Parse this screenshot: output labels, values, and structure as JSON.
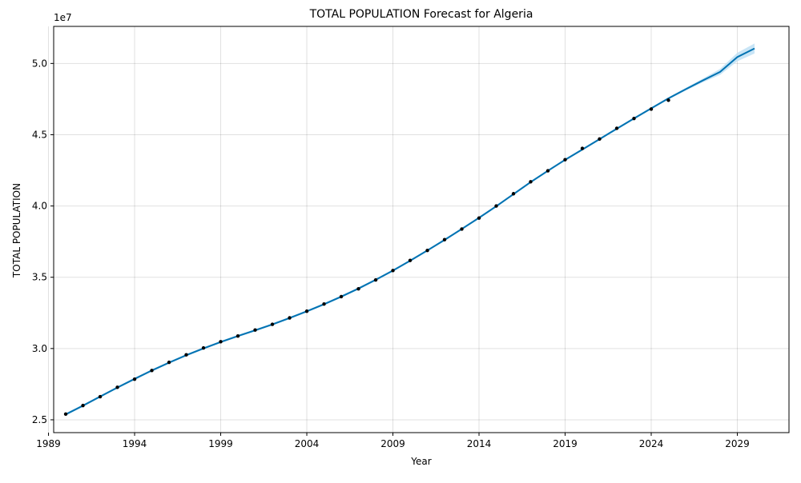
{
  "chart_data": {
    "type": "line",
    "title": "TOTAL POPULATION Forecast for Algeria",
    "xlabel": "Year",
    "ylabel": "TOTAL POPULATION",
    "y_offset_label": "1e7",
    "xlim": [
      1989.3,
      2032.0
    ],
    "ylim": [
      24100000,
      52600000
    ],
    "x_ticks": [
      1989,
      1994,
      1999,
      2004,
      2009,
      2014,
      2019,
      2024,
      2029
    ],
    "y_ticks": [
      25000000,
      30000000,
      35000000,
      40000000,
      45000000,
      50000000
    ],
    "y_tick_labels": [
      "2.5",
      "3.0",
      "3.5",
      "4.0",
      "4.5",
      "5.0"
    ],
    "grid": true,
    "colors": {
      "forecast_line": "#0072B2",
      "interval_fill": "#bfe0f5",
      "observed_points": "#000000"
    },
    "observed": {
      "x": [
        1990,
        1991,
        1992,
        1993,
        1994,
        1995,
        1996,
        1997,
        1998,
        1999,
        2000,
        2001,
        2002,
        2003,
        2004,
        2005,
        2006,
        2007,
        2008,
        2009,
        2010,
        2011,
        2012,
        2013,
        2014,
        2015,
        2016,
        2017,
        2018,
        2019,
        2020,
        2021,
        2022,
        2023,
        2024,
        2025
      ],
      "y": [
        25400000,
        26000000,
        26620000,
        27280000,
        27850000,
        28460000,
        29030000,
        29560000,
        30040000,
        30480000,
        30880000,
        31300000,
        31700000,
        32150000,
        32620000,
        33120000,
        33640000,
        34190000,
        34810000,
        35470000,
        36180000,
        36880000,
        37640000,
        38380000,
        39150000,
        40000000,
        40860000,
        41700000,
        42470000,
        43250000,
        44040000,
        44700000,
        45450000,
        46140000,
        46800000,
        47420000
      ]
    },
    "forecast": {
      "x": [
        1990,
        1991,
        1992,
        1993,
        1994,
        1995,
        1996,
        1997,
        1998,
        1999,
        2000,
        2001,
        2002,
        2003,
        2004,
        2005,
        2006,
        2007,
        2008,
        2009,
        2010,
        2011,
        2012,
        2013,
        2014,
        2015,
        2016,
        2017,
        2018,
        2019,
        2020,
        2021,
        2022,
        2023,
        2024,
        2025,
        2026,
        2027,
        2028,
        2029,
        2030
      ],
      "y": [
        25380000,
        25990000,
        26630000,
        27260000,
        27870000,
        28460000,
        29010000,
        29530000,
        30010000,
        30460000,
        30880000,
        31280000,
        31690000,
        32140000,
        32610000,
        33110000,
        33640000,
        34210000,
        34820000,
        35470000,
        36160000,
        36880000,
        37620000,
        38390000,
        39170000,
        39980000,
        40830000,
        41680000,
        42470000,
        43240000,
        43960000,
        44690000,
        45420000,
        46140000,
        46850000,
        47550000,
        48190000,
        48810000,
        49410000,
        50450000,
        51050000
      ],
      "y_lower": [
        25300000,
        25910000,
        26550000,
        27180000,
        27790000,
        28380000,
        28930000,
        29450000,
        29930000,
        30380000,
        30800000,
        31200000,
        31610000,
        32060000,
        32530000,
        33030000,
        33560000,
        34130000,
        34740000,
        35390000,
        36080000,
        36800000,
        37540000,
        38310000,
        39090000,
        39900000,
        40750000,
        41600000,
        42390000,
        43160000,
        43880000,
        44610000,
        45340000,
        46060000,
        46770000,
        47470000,
        48090000,
        48680000,
        49200000,
        50150000,
        50700000
      ],
      "y_upper": [
        25460000,
        26070000,
        26710000,
        27340000,
        27950000,
        28540000,
        29090000,
        29610000,
        30090000,
        30540000,
        30960000,
        31360000,
        31770000,
        32220000,
        32690000,
        33190000,
        33720000,
        34290000,
        34900000,
        35550000,
        36240000,
        36960000,
        37700000,
        38470000,
        39250000,
        40060000,
        40910000,
        41760000,
        42550000,
        43320000,
        44040000,
        44770000,
        45500000,
        46220000,
        46930000,
        47630000,
        48290000,
        48940000,
        49620000,
        50750000,
        51400000
      ]
    }
  }
}
